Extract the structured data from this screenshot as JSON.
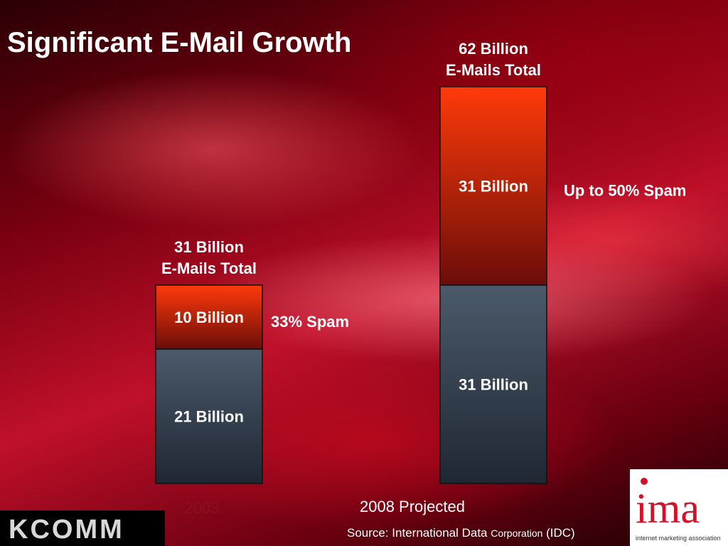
{
  "slide": {
    "title": "Significant E-Mail Growth",
    "source_prefix": "Source: International Data ",
    "source_small": "Corporation",
    "source_suffix": " (IDC)"
  },
  "logos": {
    "kcomm": "KCOMM",
    "ima": "ima",
    "ima_tagline": "internet marketing association"
  },
  "colors": {
    "spam_top": "#ff3a0a",
    "spam_bottom": "#6b0d0a",
    "legit_top": "#4b5a6a",
    "legit_bottom": "#1f2733"
  },
  "chart_data": {
    "type": "bar",
    "stacked": true,
    "categories": [
      "2003",
      "2008 Projected"
    ],
    "series": [
      {
        "values": [
          21,
          31
        ],
        "labels": [
          "21 Billion",
          "31 Billion"
        ]
      },
      {
        "values": [
          10,
          31
        ],
        "labels": [
          "10 Billion",
          "31 Billion"
        ]
      }
    ],
    "totals": [
      [
        "31 Billion",
        "E-Mails Total"
      ],
      [
        "62 Billion",
        "E-Mails Total"
      ]
    ],
    "annotations": [
      "33% Spam",
      "Up to 50% Spam"
    ]
  }
}
